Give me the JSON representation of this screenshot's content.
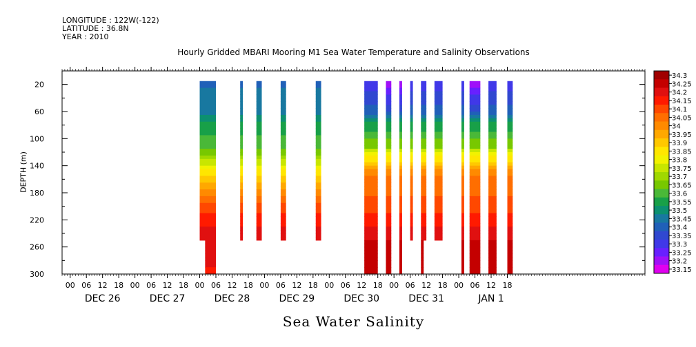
{
  "header": {
    "longitude": "LONGITUDE : 122W(-122)",
    "latitude": "LATITUDE : 36.8N",
    "year": "YEAR : 2010",
    "title": "Hourly Gridded MBARI Mooring M1 Sea Water Temperature and Salinity Observations"
  },
  "footer": {
    "variable": "Sea Water Salinity"
  },
  "chart_data": {
    "type": "heatmap",
    "title": "Hourly Gridded MBARI Mooring M1 Sea Water Temperature and Salinity Observations",
    "xlabel": "",
    "ylabel": "DEPTH (m)",
    "x_axis": {
      "unit": "hours since 2010-12-25 21:00",
      "range": [
        0,
        216
      ],
      "hour_ticks": [
        "00",
        "06",
        "12",
        "18",
        "00",
        "06",
        "12",
        "18",
        "00",
        "06",
        "12",
        "18",
        "00",
        "06",
        "12",
        "18",
        "00",
        "06",
        "12",
        "18",
        "00",
        "06",
        "12",
        "18",
        "00",
        "06",
        "12",
        "18"
      ],
      "day_labels": [
        "DEC 26",
        "DEC 27",
        "DEC 28",
        "DEC 29",
        "DEC 30",
        "DEC 31",
        "JAN  1"
      ]
    },
    "y_axis": {
      "range": [
        0,
        300
      ],
      "inverted": true,
      "ticks": [
        20,
        60,
        100,
        140,
        180,
        220,
        260,
        300
      ]
    },
    "colorbar": {
      "levels": [
        34.3,
        34.25,
        34.2,
        34.15,
        34.1,
        34.05,
        34,
        33.95,
        33.9,
        33.85,
        33.8,
        33.75,
        33.7,
        33.65,
        33.6,
        33.55,
        33.5,
        33.45,
        33.4,
        33.35,
        33.3,
        33.25,
        33.2,
        33.15
      ],
      "colors": [
        "#a00000",
        "#c40000",
        "#e01010",
        "#ff1a00",
        "#ff4800",
        "#ff6e00",
        "#ff8a00",
        "#ffa800",
        "#ffc800",
        "#ffe600",
        "#f2f200",
        "#c8e600",
        "#a0d800",
        "#78c800",
        "#4ab838",
        "#18a048",
        "#0c9070",
        "#1878a0",
        "#2060b8",
        "#3048d0",
        "#4038e8",
        "#6820ff",
        "#a010f8",
        "#e000f0"
      ]
    },
    "segments": [
      {
        "t0": 51,
        "t1": 57,
        "top": 20,
        "bottom": 250,
        "profile": "red_blue",
        "extra_red": [
          53,
          57,
          300
        ]
      },
      {
        "t0": 66,
        "t1": 67,
        "top": 20,
        "bottom": 250,
        "profile": "red_blue"
      },
      {
        "t0": 72,
        "t1": 74,
        "top": 20,
        "bottom": 250,
        "profile": "red_blue"
      },
      {
        "t0": 81,
        "t1": 83,
        "top": 20,
        "bottom": 250,
        "profile": "red_blue"
      },
      {
        "t0": 94,
        "t1": 96,
        "top": 20,
        "bottom": 250,
        "profile": "red_blue"
      },
      {
        "t0": 112,
        "t1": 117,
        "top": 20,
        "bottom": 300,
        "profile": "red_violet"
      },
      {
        "t0": 120,
        "t1": 122,
        "top": 20,
        "bottom": 300,
        "profile": "red_violet2"
      },
      {
        "t0": 125,
        "t1": 126,
        "top": 20,
        "bottom": 300,
        "profile": "red_violet2"
      },
      {
        "t0": 129,
        "t1": 130,
        "top": 20,
        "bottom": 250,
        "profile": "red_violet"
      },
      {
        "t0": 133,
        "t1": 135,
        "top": 20,
        "bottom": 250,
        "profile": "red_violet",
        "extra_red": [
          133,
          134,
          300
        ]
      },
      {
        "t0": 138,
        "t1": 141,
        "top": 20,
        "bottom": 250,
        "profile": "red_violet"
      },
      {
        "t0": 148,
        "t1": 149,
        "top": 20,
        "bottom": 300,
        "profile": "red_violet"
      },
      {
        "t0": 151,
        "t1": 155,
        "top": 20,
        "bottom": 300,
        "profile": "red_violet2"
      },
      {
        "t0": 158,
        "t1": 161,
        "top": 20,
        "bottom": 300,
        "profile": "red_violet"
      },
      {
        "t0": 165,
        "t1": 167,
        "top": 20,
        "bottom": 300,
        "profile": "red_violet"
      }
    ],
    "profiles": {
      "red_blue": [
        [
          20,
          33.42
        ],
        [
          60,
          33.45
        ],
        [
          80,
          33.55
        ],
        [
          110,
          33.6
        ],
        [
          130,
          33.72
        ],
        [
          150,
          33.85
        ],
        [
          170,
          33.95
        ],
        [
          190,
          34.05
        ],
        [
          210,
          34.12
        ],
        [
          230,
          34.18
        ],
        [
          250,
          34.22
        ],
        [
          280,
          34.2
        ],
        [
          300,
          34.15
        ]
      ],
      "red_violet": [
        [
          20,
          33.3
        ],
        [
          60,
          33.4
        ],
        [
          80,
          33.55
        ],
        [
          110,
          33.65
        ],
        [
          130,
          33.85
        ],
        [
          150,
          34.02
        ],
        [
          180,
          34.06
        ],
        [
          210,
          34.12
        ],
        [
          240,
          34.2
        ],
        [
          270,
          34.27
        ],
        [
          300,
          34.25
        ]
      ],
      "red_violet2": [
        [
          20,
          33.2
        ],
        [
          60,
          33.38
        ],
        [
          80,
          33.55
        ],
        [
          110,
          33.65
        ],
        [
          130,
          33.85
        ],
        [
          150,
          34.02
        ],
        [
          180,
          34.06
        ],
        [
          210,
          34.12
        ],
        [
          240,
          34.2
        ],
        [
          270,
          34.27
        ],
        [
          300,
          34.25
        ]
      ]
    }
  }
}
